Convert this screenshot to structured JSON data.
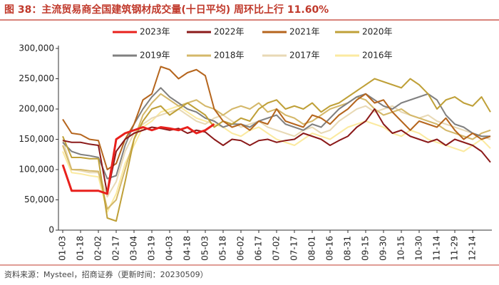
{
  "chart_data": {
    "type": "line",
    "title": "图 38：主流贸易商全国建筑钢材成交量(十日平均) 周环比上行 11.60%",
    "source": "资料来源：Mysteel，招商证券（更新时间：20230509）",
    "categories": [
      "01-03",
      null,
      "01-18",
      null,
      "02-02",
      null,
      "02-17",
      null,
      "03-04",
      null,
      "03-19",
      null,
      "04-03",
      null,
      "04-18",
      null,
      "05-03",
      null,
      "05-18",
      null,
      "06-02",
      null,
      "06-17",
      null,
      "07-02",
      null,
      "07-17",
      null,
      "08-01",
      null,
      "08-16",
      null,
      "08-31",
      null,
      "09-15",
      null,
      "09-30",
      null,
      "10-15",
      null,
      "10-30",
      null,
      "11-14",
      null,
      "11-29",
      null,
      "12-14",
      null,
      null
    ],
    "ylim": [
      0,
      300000
    ],
    "yticks": [
      0,
      {
        "value": 50000,
        "label": "50,000"
      },
      {
        "value": 100000,
        "label": "100,000"
      },
      {
        "value": 150000,
        "label": "150,000"
      },
      {
        "value": 200000,
        "label": "200,000"
      },
      {
        "value": 250000,
        "label": "250,000"
      },
      {
        "value": 300000,
        "label": "300,000"
      }
    ],
    "grid": false,
    "legend": "top",
    "series": [
      {
        "name": "2023年",
        "color": "#e8201c",
        "values": [
          108000,
          65000,
          65000,
          65000,
          65000,
          60000,
          150000,
          160000,
          165000,
          170000,
          165000,
          170000,
          168000,
          165000,
          170000,
          160000,
          165000,
          175000,
          null,
          null,
          null,
          null,
          null,
          null,
          null,
          null,
          null,
          null,
          null,
          null,
          null,
          null,
          null,
          null,
          null,
          null,
          null,
          null,
          null,
          null,
          null,
          null,
          null,
          null,
          null,
          null,
          null,
          null,
          null
        ]
      },
      {
        "name": "2022年",
        "color": "#8b1a1a",
        "values": [
          148000,
          145000,
          145000,
          142000,
          140000,
          60000,
          130000,
          150000,
          160000,
          165000,
          170000,
          168000,
          165000,
          168000,
          160000,
          165000,
          162000,
          150000,
          140000,
          150000,
          148000,
          140000,
          148000,
          150000,
          145000,
          148000,
          150000,
          160000,
          155000,
          150000,
          140000,
          148000,
          155000,
          170000,
          180000,
          200000,
          175000,
          160000,
          165000,
          155000,
          150000,
          145000,
          150000,
          140000,
          150000,
          145000,
          140000,
          130000,
          112000
        ]
      },
      {
        "name": "2021年",
        "color": "#b5651d",
        "values": [
          183000,
          160000,
          158000,
          150000,
          148000,
          100000,
          110000,
          150000,
          175000,
          215000,
          225000,
          270000,
          265000,
          250000,
          260000,
          265000,
          255000,
          200000,
          180000,
          170000,
          175000,
          165000,
          180000,
          175000,
          200000,
          180000,
          175000,
          170000,
          190000,
          185000,
          175000,
          190000,
          200000,
          215000,
          225000,
          210000,
          215000,
          195000,
          180000,
          165000,
          180000,
          175000,
          170000,
          185000,
          165000,
          150000,
          160000,
          150000,
          155000
        ]
      },
      {
        "name": "2020年",
        "color": "#bfa038",
        "values": [
          155000,
          120000,
          120000,
          118000,
          118000,
          20000,
          15000,
          80000,
          150000,
          180000,
          200000,
          205000,
          190000,
          200000,
          210000,
          200000,
          190000,
          170000,
          180000,
          175000,
          185000,
          180000,
          200000,
          210000,
          215000,
          200000,
          205000,
          200000,
          210000,
          195000,
          205000,
          210000,
          220000,
          230000,
          240000,
          250000,
          245000,
          240000,
          235000,
          250000,
          240000,
          225000,
          200000,
          215000,
          220000,
          210000,
          205000,
          220000,
          195000
        ]
      },
      {
        "name": "2019年",
        "color": "#808080",
        "values": [
          145000,
          130000,
          125000,
          123000,
          120000,
          85000,
          90000,
          140000,
          175000,
          200000,
          220000,
          235000,
          220000,
          210000,
          200000,
          195000,
          185000,
          180000,
          170000,
          175000,
          175000,
          170000,
          180000,
          185000,
          190000,
          175000,
          170000,
          165000,
          175000,
          170000,
          185000,
          200000,
          210000,
          220000,
          225000,
          215000,
          205000,
          200000,
          210000,
          215000,
          220000,
          225000,
          215000,
          190000,
          175000,
          170000,
          160000,
          155000,
          155000
        ]
      },
      {
        "name": "2018年",
        "color": "#d4b86a",
        "values": [
          140000,
          100000,
          100000,
          98000,
          97000,
          35000,
          50000,
          100000,
          150000,
          190000,
          210000,
          225000,
          215000,
          205000,
          210000,
          215000,
          205000,
          200000,
          190000,
          200000,
          205000,
          200000,
          210000,
          195000,
          200000,
          190000,
          185000,
          175000,
          180000,
          190000,
          200000,
          205000,
          210000,
          220000,
          215000,
          200000,
          190000,
          195000,
          200000,
          190000,
          185000,
          180000,
          175000,
          165000,
          160000,
          155000,
          150000,
          160000,
          165000
        ]
      },
      {
        "name": "2017年",
        "color": "#e8d9b5",
        "values": [
          150000,
          100000,
          98000,
          95000,
          95000,
          55000,
          80000,
          130000,
          160000,
          175000,
          185000,
          190000,
          195000,
          200000,
          190000,
          180000,
          175000,
          185000,
          190000,
          180000,
          170000,
          175000,
          180000,
          170000,
          165000,
          160000,
          155000,
          165000,
          170000,
          160000,
          165000,
          180000,
          190000,
          200000,
          205000,
          195000,
          200000,
          205000,
          195000,
          190000,
          185000,
          190000,
          180000,
          175000,
          170000,
          165000,
          160000,
          155000,
          150000
        ]
      },
      {
        "name": "2016年",
        "color": "#fbeaa0",
        "values": [
          130000,
          95000,
          93000,
          90000,
          88000,
          30000,
          60000,
          110000,
          140000,
          170000,
          180000,
          195000,
          200000,
          205000,
          195000,
          185000,
          180000,
          175000,
          170000,
          160000,
          155000,
          165000,
          170000,
          160000,
          150000,
          145000,
          140000,
          150000,
          160000,
          155000,
          150000,
          160000,
          170000,
          175000,
          180000,
          175000,
          170000,
          160000,
          155000,
          165000,
          160000,
          150000,
          145000,
          140000,
          135000,
          130000,
          140000,
          150000,
          135000
        ]
      }
    ]
  }
}
